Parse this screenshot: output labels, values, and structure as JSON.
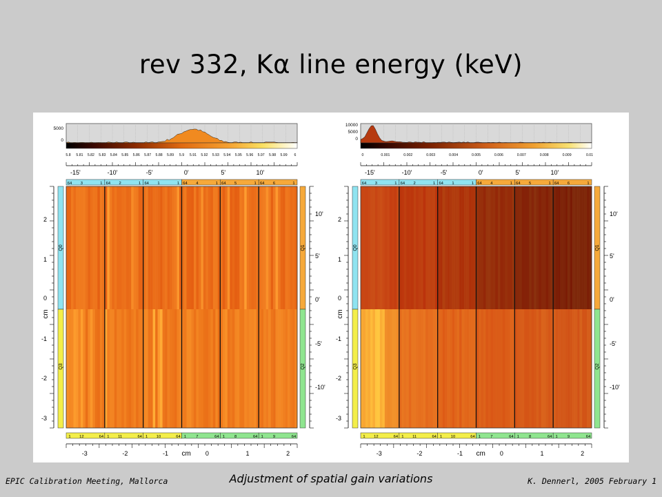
{
  "slide": {
    "title": "rev 332, Kα line energy (keV)",
    "footer_left": "EPIC Calibration Meeting, Mallorca",
    "footer_center": "Adjustment of spatial gain variations",
    "footer_right": "K. Dennerl, 2005 February 1"
  },
  "panels": [
    {
      "id": "left",
      "histogram_y_ticks": [
        "5000",
        "0"
      ],
      "colorbar_ticks": [
        "5.8",
        "5.81",
        "5.82",
        "5.83",
        "5.84",
        "5.85",
        "5.86",
        "5.87",
        "5.88",
        "5.89",
        "5.9",
        "5.91",
        "5.92",
        "5.93",
        "5.94",
        "5.95",
        "5.96",
        "5.97",
        "5.98",
        "5.99",
        "6"
      ],
      "top_arcmin_ticks": [
        "-15'",
        "-10'",
        "-5'",
        "0'",
        "5'",
        "10'"
      ],
      "top_ccd_strip": [
        "64",
        "3",
        "1",
        "64",
        "2",
        "1",
        "64",
        "1",
        "1",
        "64",
        "4",
        "1",
        "64",
        "5",
        "1",
        "64",
        "6",
        "1"
      ],
      "bottom_ccd_strip": [
        "1",
        "12",
        "64",
        "1",
        "11",
        "64",
        "1",
        "10",
        "64",
        "1",
        "7",
        "64",
        "1",
        "8",
        "64",
        "1",
        "9",
        "64"
      ],
      "left_cm_ticks": [
        "2",
        "1",
        "0",
        "-1",
        "-2",
        "-3"
      ],
      "right_arcmin_ticks": [
        "10'",
        "5'",
        "0'",
        "-5'",
        "-10'"
      ],
      "left_quadrant_top": "Q0",
      "left_quadrant_bottom": "Q3",
      "right_quadrant_top": "Q1",
      "right_quadrant_bottom": "Q2",
      "bottom_cm_ticks": [
        "-3",
        "-2",
        "-1",
        "0",
        "1",
        "2"
      ],
      "axis_unit": "cm"
    },
    {
      "id": "right",
      "histogram_y_ticks": [
        "10000",
        "5000",
        "0"
      ],
      "colorbar_ticks": [
        "0",
        "0.001",
        "0.002",
        "0.003",
        "0.004",
        "0.005",
        "0.006",
        "0.007",
        "0.008",
        "0.009",
        "0.01"
      ],
      "top_arcmin_ticks": [
        "-15'",
        "-10'",
        "-5'",
        "0'",
        "5'",
        "10'"
      ],
      "top_ccd_strip": [
        "64",
        "3",
        "1",
        "64",
        "2",
        "1",
        "64",
        "1",
        "1",
        "64",
        "4",
        "1",
        "64",
        "5",
        "1",
        "64",
        "6",
        "1"
      ],
      "bottom_ccd_strip": [
        "1",
        "12",
        "64",
        "1",
        "11",
        "64",
        "1",
        "10",
        "64",
        "1",
        "7",
        "64",
        "1",
        "8",
        "64",
        "1",
        "9",
        "64"
      ],
      "left_cm_ticks": [
        "2",
        "1",
        "0",
        "-1",
        "-2",
        "-3"
      ],
      "right_arcmin_ticks": [
        "10'",
        "5'",
        "0'",
        "-5'",
        "-10'"
      ],
      "left_quadrant_top": "Q0",
      "left_quadrant_bottom": "Q3",
      "right_quadrant_top": "Q1",
      "right_quadrant_bottom": "Q2",
      "bottom_cm_ticks": [
        "-3",
        "-2",
        "-1",
        "0",
        "1",
        "2"
      ],
      "axis_unit": "cm"
    }
  ],
  "colors": {
    "strip_cyan": "#8fe3f0",
    "strip_green": "#8fe58f",
    "strip_orange": "#f6a93a",
    "strip_yellow": "#f3ee4a"
  }
}
